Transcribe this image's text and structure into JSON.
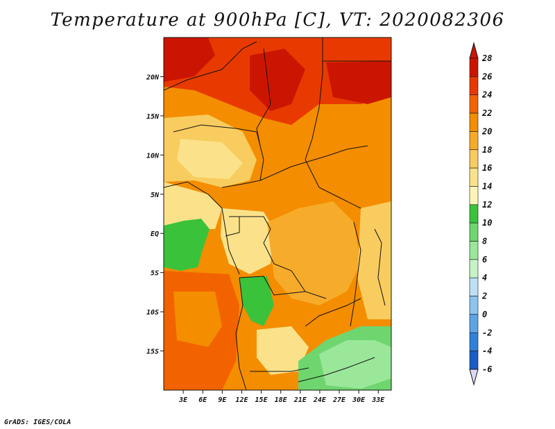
{
  "title": "Temperature at 900hPa [C], VT: 2020082306",
  "credit": "GrADS: IGES/COLA",
  "map": {
    "lon_ticks": [
      "3E",
      "6E",
      "9E",
      "12E",
      "15E",
      "18E",
      "21E",
      "24E",
      "27E",
      "30E",
      "33E"
    ],
    "lat_ticks": [
      "20N",
      "15N",
      "10N",
      "5N",
      "EQ",
      "5S",
      "10S",
      "15S"
    ],
    "lon_range": [
      0,
      35
    ],
    "lat_range": [
      -20,
      25
    ]
  },
  "colorbar": {
    "labels": [
      "28",
      "26",
      "24",
      "22",
      "20",
      "18",
      "16",
      "14",
      "12",
      "10",
      "8",
      "6",
      "4",
      "2",
      "0",
      "-2",
      "-4",
      "-6"
    ],
    "colors": [
      "#a50000",
      "#cc1500",
      "#e83a00",
      "#f26300",
      "#f48d00",
      "#f6ab2a",
      "#f8cc5e",
      "#fbe28a",
      "#fdf5b7",
      "#3bc23b",
      "#6fd66f",
      "#9ae79a",
      "#c6f3c6",
      "#bde0f5",
      "#8cc4ee",
      "#5ea4e5",
      "#3281d8",
      "#1a5cc8",
      "#0b37ae",
      "#001a7c",
      "#d9d9f4"
    ],
    "top_color": "#cc1500",
    "bottom_color": "#d9d9f4"
  }
}
